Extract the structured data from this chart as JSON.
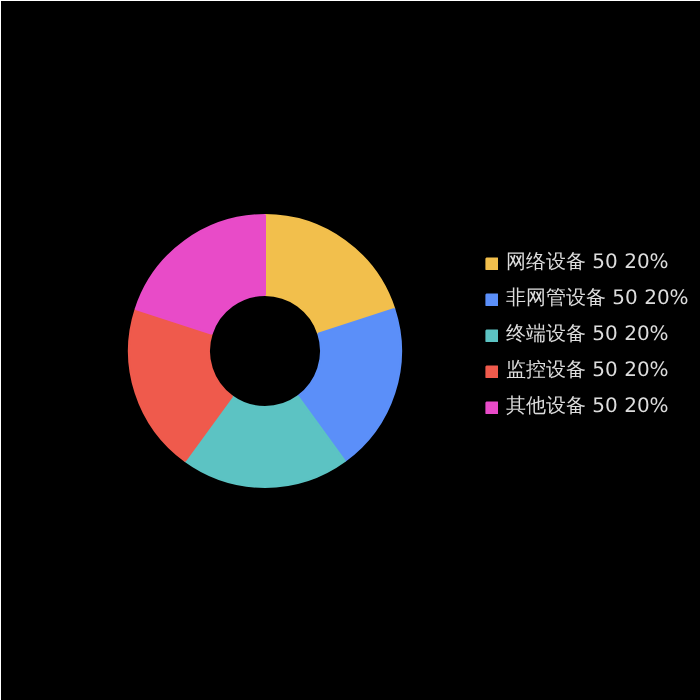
{
  "chart_data": {
    "type": "donut",
    "categories": [
      "网络设备",
      "非网管设备",
      "终端设备",
      "监控设备",
      "其他设备"
    ],
    "values": [
      50,
      50,
      50,
      50,
      50
    ],
    "value_labels": [
      "50 20%",
      "50 20%",
      "50 20%",
      "50 20%",
      "50 20%"
    ],
    "colors": [
      "#f2bf4c",
      "#5b8ff9",
      "#5cc3c3",
      "#ef5a4c",
      "#e84bc8"
    ],
    "legend": "right"
  }
}
